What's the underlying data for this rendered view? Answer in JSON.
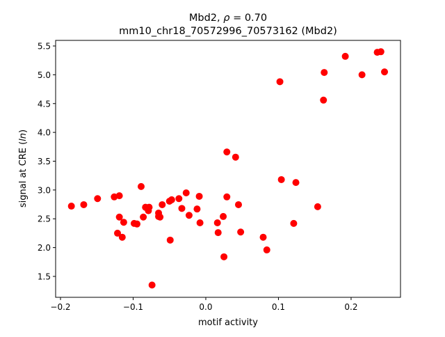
{
  "chart_data": {
    "type": "scatter",
    "title_line1_prefix": "Mbd2, ",
    "title_rho_symbol": "ρ",
    "title_rho_value": " = 0.70",
    "title_line2": "mm10_chr18_70572996_70573162 (Mbd2)",
    "xlabel": "motif activity",
    "ylabel_prefix": "signal at CRE (",
    "ylabel_italic": "ln",
    "ylabel_suffix": ")",
    "xlim": [
      -0.2067,
      0.268
    ],
    "ylim": [
      1.137,
      5.597
    ],
    "xticks": [
      -0.2,
      -0.1,
      0.0,
      0.1,
      0.2
    ],
    "xtick_labels": [
      "−0.2",
      "−0.1",
      "0.0",
      "0.1",
      "0.2"
    ],
    "yticks": [
      1.5,
      2.0,
      2.5,
      3.0,
      3.5,
      4.0,
      4.5,
      5.0,
      5.5
    ],
    "ytick_labels": [
      "1.5",
      "2.0",
      "2.5",
      "3.0",
      "3.5",
      "4.0",
      "4.5",
      "5.0",
      "5.5"
    ],
    "grid": false,
    "marker_color": "#ff0000",
    "points": [
      [
        -0.185,
        2.72
      ],
      [
        -0.168,
        2.745
      ],
      [
        -0.149,
        2.85
      ],
      [
        -0.126,
        2.88
      ],
      [
        -0.119,
        2.9
      ],
      [
        -0.119,
        2.53
      ],
      [
        -0.1215,
        2.25
      ],
      [
        -0.115,
        2.18
      ],
      [
        -0.113,
        2.44
      ],
      [
        -0.089,
        3.06
      ],
      [
        -0.0986,
        2.42
      ],
      [
        -0.0947,
        2.41
      ],
      [
        -0.086,
        2.53
      ],
      [
        -0.083,
        2.7
      ],
      [
        -0.078,
        2.7
      ],
      [
        -0.079,
        2.64
      ],
      [
        -0.074,
        1.35
      ],
      [
        -0.065,
        2.6
      ],
      [
        -0.065,
        2.54
      ],
      [
        -0.063,
        2.53
      ],
      [
        -0.06,
        2.745
      ],
      [
        -0.05,
        2.805
      ],
      [
        -0.047,
        2.83
      ],
      [
        -0.049,
        2.13
      ],
      [
        -0.037,
        2.85
      ],
      [
        -0.033,
        2.68
      ],
      [
        -0.027,
        2.95
      ],
      [
        -0.023,
        2.56
      ],
      [
        -0.012,
        2.67
      ],
      [
        -0.009,
        2.89
      ],
      [
        -0.008,
        2.43
      ],
      [
        0.016,
        2.43
      ],
      [
        0.017,
        2.26
      ],
      [
        0.025,
        1.84
      ],
      [
        0.024,
        2.54
      ],
      [
        0.029,
        3.66
      ],
      [
        0.029,
        2.88
      ],
      [
        0.041,
        3.57
      ],
      [
        0.045,
        2.745
      ],
      [
        0.048,
        2.27
      ],
      [
        0.079,
        2.18
      ],
      [
        0.084,
        1.96
      ],
      [
        0.102,
        4.88
      ],
      [
        0.104,
        3.18
      ],
      [
        0.121,
        2.42
      ],
      [
        0.124,
        3.13
      ],
      [
        0.154,
        2.71
      ],
      [
        0.162,
        4.56
      ],
      [
        0.163,
        5.04
      ],
      [
        0.192,
        5.32
      ],
      [
        0.215,
        5.0
      ],
      [
        0.236,
        5.39
      ],
      [
        0.241,
        5.4
      ],
      [
        0.246,
        5.05
      ]
    ]
  }
}
